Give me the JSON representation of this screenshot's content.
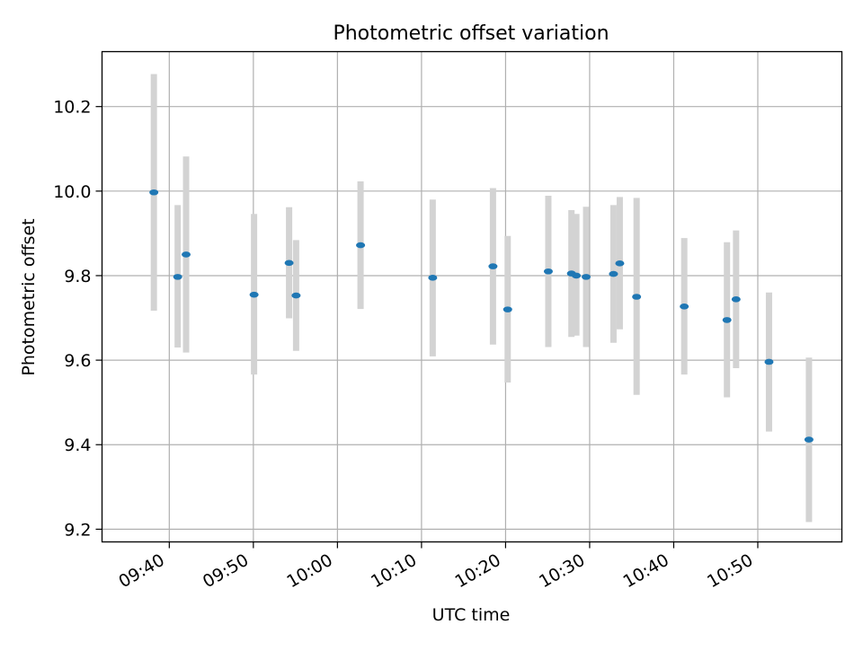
{
  "chart_data": {
    "type": "scatter",
    "title": "Photometric offset variation",
    "xlabel": "UTC time",
    "ylabel": "Photometric offset",
    "xlim": [
      "09:32:00",
      "11:00:00"
    ],
    "ylim": [
      9.17,
      10.33
    ],
    "x_ticks": [
      "09:40",
      "09:50",
      "10:00",
      "10:10",
      "10:20",
      "10:30",
      "10:40",
      "10:50"
    ],
    "y_ticks": [
      "9.2",
      "9.4",
      "9.6",
      "9.8",
      "10.0",
      "10.2"
    ],
    "grid": true,
    "error_bars": true,
    "points": [
      {
        "x": "09:38:10",
        "y": 9.997,
        "ylow": 9.717,
        "yhigh": 10.277
      },
      {
        "x": "09:41:00",
        "y": 9.797,
        "ylow": 9.63,
        "yhigh": 9.967
      },
      {
        "x": "09:42:00",
        "y": 9.85,
        "ylow": 9.618,
        "yhigh": 10.082
      },
      {
        "x": "09:50:05",
        "y": 9.755,
        "ylow": 9.566,
        "yhigh": 9.946
      },
      {
        "x": "09:54:15",
        "y": 9.83,
        "ylow": 9.699,
        "yhigh": 9.962
      },
      {
        "x": "09:55:05",
        "y": 9.753,
        "ylow": 9.622,
        "yhigh": 9.884
      },
      {
        "x": "10:02:45",
        "y": 9.872,
        "ylow": 9.721,
        "yhigh": 10.023
      },
      {
        "x": "10:11:20",
        "y": 9.795,
        "ylow": 9.609,
        "yhigh": 9.98
      },
      {
        "x": "10:18:30",
        "y": 9.822,
        "ylow": 9.637,
        "yhigh": 10.007
      },
      {
        "x": "10:20:15",
        "y": 9.72,
        "ylow": 9.547,
        "yhigh": 9.894
      },
      {
        "x": "10:25:05",
        "y": 9.81,
        "ylow": 9.631,
        "yhigh": 9.989
      },
      {
        "x": "10:27:50",
        "y": 9.805,
        "ylow": 9.655,
        "yhigh": 9.955
      },
      {
        "x": "10:28:25",
        "y": 9.8,
        "ylow": 9.658,
        "yhigh": 9.946
      },
      {
        "x": "10:29:35",
        "y": 9.797,
        "ylow": 9.631,
        "yhigh": 9.963
      },
      {
        "x": "10:32:50",
        "y": 9.804,
        "ylow": 9.641,
        "yhigh": 9.967
      },
      {
        "x": "10:33:35",
        "y": 9.829,
        "ylow": 9.673,
        "yhigh": 9.986
      },
      {
        "x": "10:35:35",
        "y": 9.75,
        "ylow": 9.518,
        "yhigh": 9.984
      },
      {
        "x": "10:41:15",
        "y": 9.727,
        "ylow": 9.566,
        "yhigh": 9.889
      },
      {
        "x": "10:46:20",
        "y": 9.695,
        "ylow": 9.512,
        "yhigh": 9.879
      },
      {
        "x": "10:47:25",
        "y": 9.744,
        "ylow": 9.581,
        "yhigh": 9.907
      },
      {
        "x": "10:51:20",
        "y": 9.596,
        "ylow": 9.431,
        "yhigh": 9.76
      },
      {
        "x": "10:56:05",
        "y": 9.412,
        "ylow": 9.217,
        "yhigh": 9.606
      }
    ],
    "colors": {
      "point": "#1f77b4",
      "error_bar": "#d3d3d3",
      "grid": "#b0b0b0",
      "axes": "#000000"
    }
  }
}
